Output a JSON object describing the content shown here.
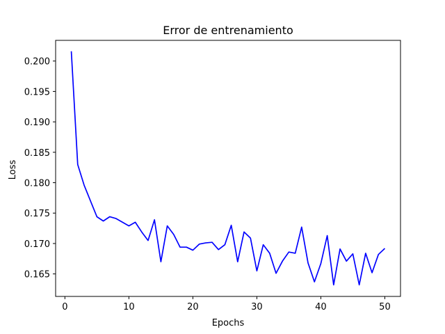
{
  "chart_data": {
    "type": "line",
    "title": "Error de entrenamiento",
    "xlabel": "Epochs",
    "ylabel": "Loss",
    "xlim": [
      -1.45,
      52.45
    ],
    "ylim": [
      0.1613,
      0.2034
    ],
    "x_ticks": [
      0,
      10,
      20,
      30,
      40,
      50
    ],
    "y_ticks": [
      0.165,
      0.17,
      0.175,
      0.18,
      0.185,
      0.19,
      0.195,
      0.2
    ],
    "x_tick_labels": [
      "0",
      "10",
      "20",
      "30",
      "40",
      "50"
    ],
    "y_tick_labels": [
      "0.165",
      "0.170",
      "0.175",
      "0.180",
      "0.185",
      "0.190",
      "0.195",
      "0.200"
    ],
    "grid": false,
    "series": [
      {
        "color": "#0000ff",
        "x": [
          1,
          2,
          3,
          4,
          5,
          6,
          7,
          8,
          9,
          10,
          11,
          12,
          13,
          14,
          15,
          16,
          17,
          18,
          19,
          20,
          21,
          22,
          23,
          24,
          25,
          26,
          27,
          28,
          29,
          30,
          31,
          32,
          33,
          34,
          35,
          36,
          37,
          38,
          39,
          40,
          41,
          42,
          43,
          44,
          45,
          46,
          47,
          48,
          49,
          50
        ],
        "values": [
          0.2016,
          0.183,
          0.1796,
          0.177,
          0.1744,
          0.1737,
          0.1744,
          0.1741,
          0.1735,
          0.1729,
          0.1735,
          0.1719,
          0.1705,
          0.1739,
          0.167,
          0.1729,
          0.1715,
          0.1694,
          0.1694,
          0.1689,
          0.1699,
          0.1701,
          0.1702,
          0.169,
          0.1698,
          0.173,
          0.167,
          0.1719,
          0.1709,
          0.1655,
          0.1698,
          0.1684,
          0.1651,
          0.1671,
          0.1686,
          0.1684,
          0.1727,
          0.1668,
          0.1637,
          0.1667,
          0.1713,
          0.1632,
          0.1691,
          0.1671,
          0.1683,
          0.1632,
          0.1684,
          0.1652,
          0.1682,
          0.1692
        ]
      }
    ]
  }
}
